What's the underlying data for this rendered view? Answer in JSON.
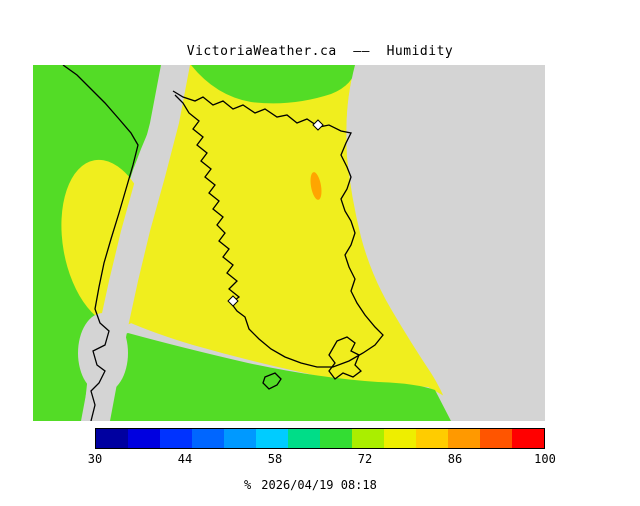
{
  "title": "VictoriaWeather.ca  ——  Humidity",
  "colors": {
    "page_bg": "#ffffff",
    "sea_gray": "#d4d4d4",
    "humidity_green": "#53dc26",
    "humidity_yellow": "#f0ee1e",
    "humidity_orange": "#ffa500",
    "coastline": "#000000",
    "marker_fill": "#ffffff",
    "text": "#000000"
  },
  "colorbar": {
    "min": 30,
    "max": 100,
    "tick_labels": [
      "30",
      "44",
      "58",
      "72",
      "86",
      "100"
    ],
    "segment_colors": [
      "#0000a0",
      "#0000e0",
      "#0033ff",
      "#0066ff",
      "#0099ff",
      "#00ccff",
      "#00dd88",
      "#33dd33",
      "#aaee00",
      "#eeee00",
      "#ffcc00",
      "#ff9900",
      "#ff5500",
      "#ff0000"
    ]
  },
  "footer": {
    "unit_label": "%",
    "timestamp": "2026/04/19 08:18"
  }
}
